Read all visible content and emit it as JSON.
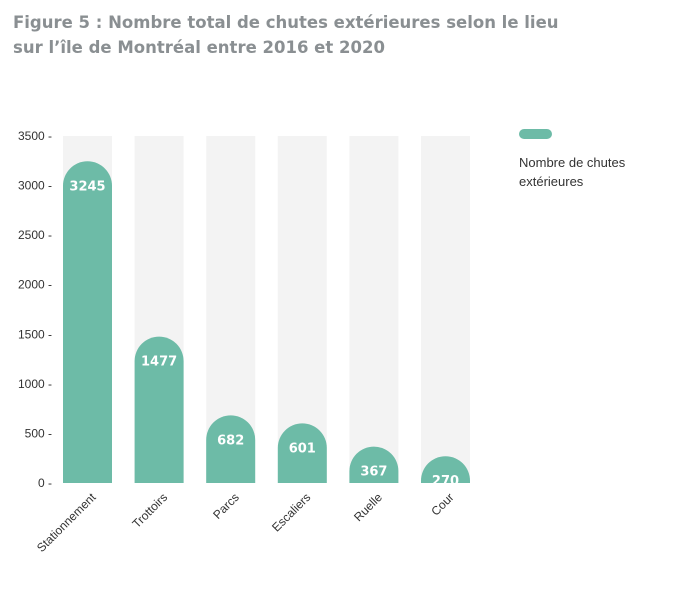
{
  "title": {
    "line1": "Figure 5 : Nombre total de chutes extérieures selon le lieu",
    "line2": "sur l’île de Montréal entre 2016 et 2020"
  },
  "colors": {
    "bar": "#6dbba7",
    "track": "#f3f3f3",
    "title": "#8a8f92"
  },
  "legend": {
    "label": "Nombre de chutes extérieures",
    "position": "top-right"
  },
  "chart_data": {
    "type": "bar",
    "title": "Figure 5 : Nombre total de chutes extérieures selon le lieu sur l’île de Montréal entre 2016 et 2020",
    "categories": [
      "Stationnement",
      "Trottoirs",
      "Parcs",
      "Escaliers",
      "Ruelle",
      "Cour"
    ],
    "series": [
      {
        "name": "Nombre de chutes extérieures",
        "values": [
          3245,
          1477,
          682,
          601,
          367,
          270
        ]
      }
    ],
    "ylim": [
      0,
      3500
    ],
    "yticks": [
      0,
      500,
      1000,
      1500,
      2000,
      2500,
      3000,
      3500
    ],
    "ytick_labels": [
      "0 -",
      "500 -",
      "1000 -",
      "1500 -",
      "2000 -",
      "2500 -",
      "3000 -",
      "3500 -"
    ],
    "xlabel": "",
    "ylabel": "",
    "grid": false,
    "data_labels": [
      "3245",
      "1477",
      "682",
      "601",
      "367",
      "270"
    ]
  }
}
